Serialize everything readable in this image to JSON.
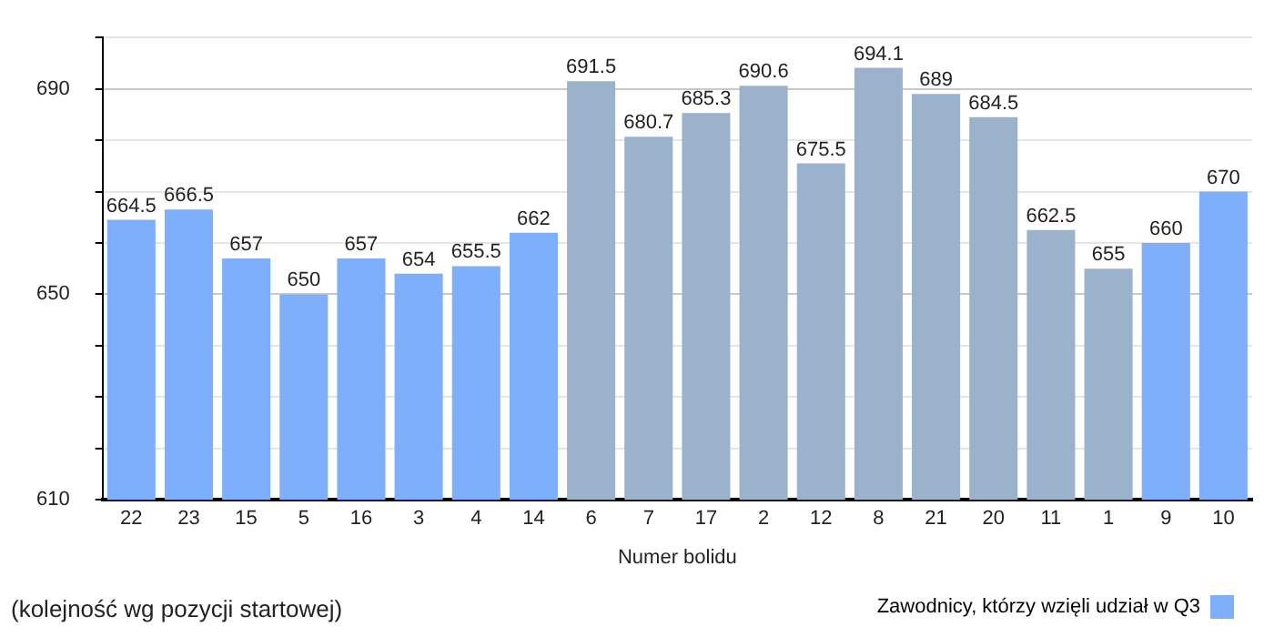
{
  "chart_data": {
    "type": "bar",
    "xlabel": "Numer bolidu",
    "categories": [
      "22",
      "23",
      "15",
      "5",
      "16",
      "3",
      "4",
      "14",
      "6",
      "7",
      "17",
      "2",
      "12",
      "8",
      "21",
      "20",
      "11",
      "1",
      "9",
      "10"
    ],
    "series": [
      {
        "name": "Zawodnicy, którzy wzięli udział w Q3",
        "color": "#7eaffc",
        "colors": [
          "#7eaffc",
          "#7eaffc",
          "#7eaffc",
          "#7eaffc",
          "#7eaffc",
          "#7eaffc",
          "#7eaffc",
          "#7eaffc",
          "#9ab2cc",
          "#9ab2cc",
          "#9ab2cc",
          "#9ab2cc",
          "#9ab2cc",
          "#9ab2cc",
          "#9ab2cc",
          "#9ab2cc",
          "#9ab2cc",
          "#9ab2cc",
          "#7eaffc",
          "#7eaffc"
        ],
        "values": [
          664.5,
          666.5,
          657,
          650,
          657,
          654,
          655.5,
          662,
          691.5,
          680.7,
          685.3,
          690.6,
          675.5,
          694.1,
          689,
          684.5,
          662.5,
          655,
          660,
          670
        ]
      }
    ],
    "ylim": [
      610,
      700
    ],
    "yticks": [
      610,
      {
        "value": 620,
        "label": null
      },
      {
        "value": 630,
        "label": null
      },
      {
        "value": 640,
        "label": null
      },
      650,
      {
        "value": 660,
        "label": null
      },
      {
        "value": 670,
        "label": null
      },
      {
        "value": 680,
        "label": null
      },
      690,
      {
        "value": 700,
        "label": null
      }
    ],
    "grid": "y",
    "data_labels": true,
    "legend": "bottom right",
    "annotations": [
      "(kolejność wg pozycji startowej)"
    ]
  }
}
